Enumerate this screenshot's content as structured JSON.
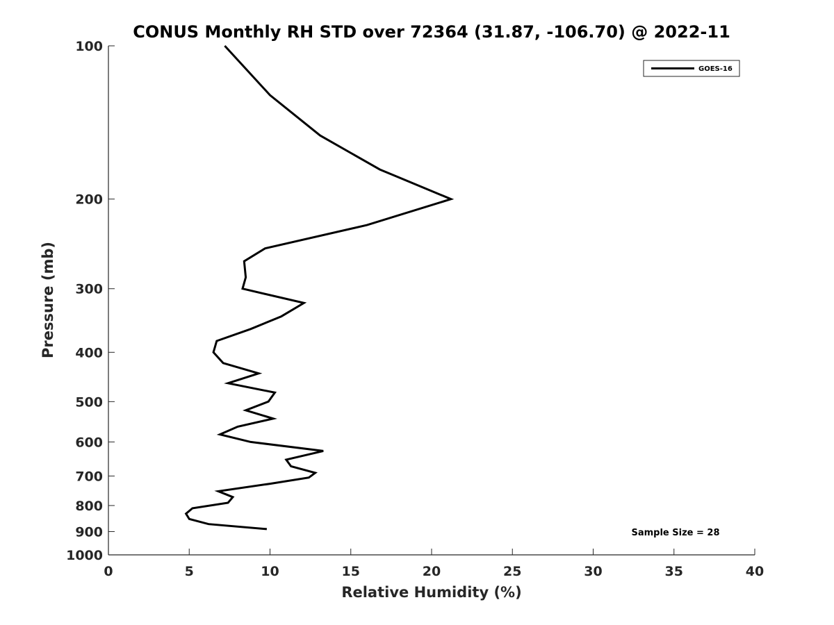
{
  "chart_data": {
    "type": "line",
    "title": "CONUS Monthly RH STD over 72364 (31.87, -106.70) @ 2022-11",
    "xlabel": "Relative Humidity (%)",
    "ylabel": "Pressure (mb)",
    "xlim": [
      0,
      40
    ],
    "ylim": [
      100,
      1000
    ],
    "y_scale": "log",
    "y_reversed": true,
    "x_ticks": [
      "0",
      "5",
      "10",
      "15",
      "20",
      "25",
      "30",
      "35",
      "40"
    ],
    "y_ticks": [
      "100",
      "200",
      "300",
      "400",
      "500",
      "600",
      "700",
      "800",
      "900",
      "1000"
    ],
    "grid": false,
    "legend_position": "top-right",
    "annotation": "Sample Size = 28",
    "series": [
      {
        "name": "GOES-16",
        "color": "#000000",
        "points": [
          {
            "x": 7.2,
            "y": 100
          },
          {
            "x": 10.0,
            "y": 125
          },
          {
            "x": 13.1,
            "y": 150
          },
          {
            "x": 16.8,
            "y": 175
          },
          {
            "x": 21.2,
            "y": 200
          },
          {
            "x": 16.0,
            "y": 225
          },
          {
            "x": 9.7,
            "y": 250
          },
          {
            "x": 8.4,
            "y": 265
          },
          {
            "x": 8.5,
            "y": 285
          },
          {
            "x": 8.3,
            "y": 300
          },
          {
            "x": 12.1,
            "y": 320
          },
          {
            "x": 10.7,
            "y": 340
          },
          {
            "x": 8.8,
            "y": 360
          },
          {
            "x": 6.7,
            "y": 380
          },
          {
            "x": 6.5,
            "y": 400
          },
          {
            "x": 7.1,
            "y": 420
          },
          {
            "x": 9.3,
            "y": 440
          },
          {
            "x": 7.4,
            "y": 460
          },
          {
            "x": 10.3,
            "y": 480
          },
          {
            "x": 9.9,
            "y": 500
          },
          {
            "x": 8.5,
            "y": 520
          },
          {
            "x": 10.2,
            "y": 540
          },
          {
            "x": 8.0,
            "y": 560
          },
          {
            "x": 6.9,
            "y": 580
          },
          {
            "x": 8.8,
            "y": 600
          },
          {
            "x": 13.3,
            "y": 625
          },
          {
            "x": 11.0,
            "y": 650
          },
          {
            "x": 11.3,
            "y": 670
          },
          {
            "x": 12.8,
            "y": 690
          },
          {
            "x": 12.4,
            "y": 705
          },
          {
            "x": 10.0,
            "y": 725
          },
          {
            "x": 6.8,
            "y": 750
          },
          {
            "x": 7.7,
            "y": 770
          },
          {
            "x": 7.4,
            "y": 790
          },
          {
            "x": 5.2,
            "y": 810
          },
          {
            "x": 4.8,
            "y": 830
          },
          {
            "x": 5.0,
            "y": 850
          },
          {
            "x": 6.2,
            "y": 870
          },
          {
            "x": 9.8,
            "y": 890
          }
        ]
      }
    ]
  }
}
